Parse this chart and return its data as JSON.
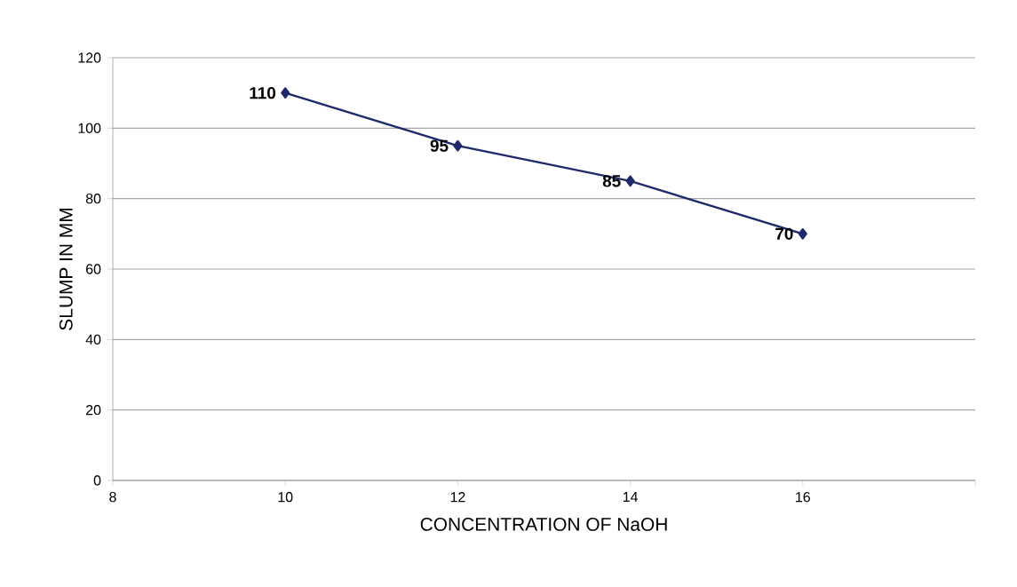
{
  "chart_data": {
    "type": "line",
    "xlabel": "CONCENTRATION OF NaOH",
    "ylabel": "SLUMP IN MM",
    "x": [
      10,
      12,
      14,
      16
    ],
    "values": [
      110,
      95,
      85,
      70
    ],
    "color": "#1f2a6b",
    "marker": "diamond",
    "line_style": "solid",
    "data_labels": true,
    "xlim": [
      8,
      18
    ],
    "xticks": [
      8,
      10,
      12,
      14,
      16,
      {
        "value": 18,
        "label": null
      }
    ],
    "ylim": [
      0,
      120
    ],
    "yticks": [
      0,
      20,
      40,
      60,
      80,
      100,
      120
    ],
    "grid": "y"
  }
}
